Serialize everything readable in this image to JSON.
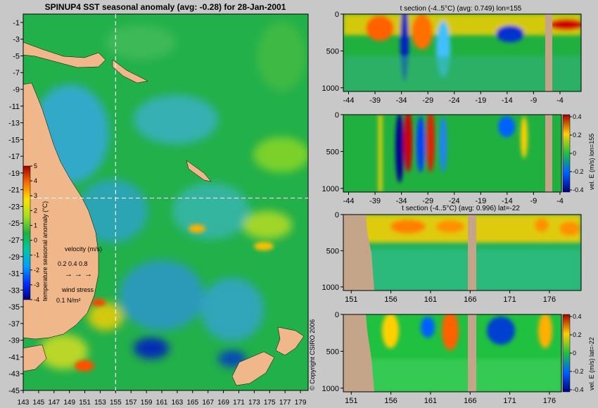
{
  "chart_data": [
    {
      "type": "heatmap",
      "title": "SPINUP4 SST seasonal anomaly (avg: -0.28) for 28-Jan-2001",
      "x_ticks": [
        "143",
        "145",
        "147",
        "149",
        "151",
        "153",
        "155",
        "157",
        "159",
        "161",
        "163",
        "165",
        "167",
        "169",
        "171",
        "173",
        "175",
        "177",
        "179"
      ],
      "y_ticks": [
        "-1",
        "-3",
        "-5",
        "-7",
        "-9",
        "-11",
        "-13",
        "-15",
        "-17",
        "-19",
        "-21",
        "-23",
        "-25",
        "-27",
        "-29",
        "-31",
        "-33",
        "-35",
        "-37",
        "-39",
        "-41",
        "-43",
        "-45"
      ],
      "xlim": [
        143,
        180
      ],
      "ylim": [
        -45,
        0
      ],
      "crosshair": {
        "lon": 155,
        "lat": -22
      },
      "colorbar": {
        "label": "temperature seasonal anomaly (°C)",
        "ticks": [
          "5",
          "4",
          "3",
          "2",
          "1",
          "0",
          "-1",
          "-2",
          "-3",
          "-4"
        ],
        "range": [
          -4,
          5
        ]
      },
      "legend": {
        "velocity_label": "velocity (m/s)",
        "velocity_values": "0.2 0.4 0.8",
        "wind_label": "wind stress",
        "wind_value": "0.1 N/m²"
      }
    },
    {
      "type": "heatmap",
      "title": "t section (-4..5°C) (avg: 0.749) lon=155",
      "x_ticks": [
        "-44",
        "-39",
        "-34",
        "-29",
        "-24",
        "-19",
        "-14",
        "-9",
        "-4"
      ],
      "y_ticks": [
        "0",
        "500",
        "1000"
      ],
      "xlim": [
        -45,
        0
      ],
      "ylim": [
        1050,
        0
      ]
    },
    {
      "type": "heatmap",
      "title": "",
      "x_ticks": [
        "-44",
        "-39",
        "-34",
        "-29",
        "-24",
        "-19",
        "-14",
        "-9",
        "-4"
      ],
      "y_ticks": [
        "0",
        "500",
        "1000"
      ],
      "xlim": [
        -45,
        0
      ],
      "ylim": [
        1050,
        0
      ],
      "colorbar": {
        "label": "vel. E (m/s) lon=155",
        "ticks": [
          "0.4",
          "0.2",
          "0",
          "-0.2",
          "-0.4"
        ],
        "range": [
          -0.4,
          0.4
        ]
      }
    },
    {
      "type": "heatmap",
      "title": "t section (-4..5°C) (avg: 0.996) lat=-22",
      "x_ticks": [
        "151",
        "156",
        "161",
        "166",
        "171",
        "176"
      ],
      "y_ticks": [
        "0",
        "500",
        "1000"
      ],
      "xlim": [
        150,
        180
      ],
      "ylim": [
        1050,
        0
      ]
    },
    {
      "type": "heatmap",
      "title": "",
      "x_ticks": [
        "151",
        "156",
        "161",
        "166",
        "171",
        "176"
      ],
      "y_ticks": [
        "0",
        "500",
        "1000"
      ],
      "xlim": [
        150,
        180
      ],
      "ylim": [
        1050,
        0
      ],
      "colorbar": {
        "label": "vel. E (m/s) lat=-22",
        "ticks": [
          "0.4",
          "0.2",
          "0",
          "-0.2",
          "-0.4"
        ],
        "range": [
          -0.4,
          0.4
        ]
      }
    }
  ],
  "copyright": "© Copyright CSIRO 2006",
  "colors": {
    "background": "#c8c8c8",
    "land": "#f0b88a",
    "section_land": "#c4a58a",
    "ocean_base": "#22b04a"
  }
}
